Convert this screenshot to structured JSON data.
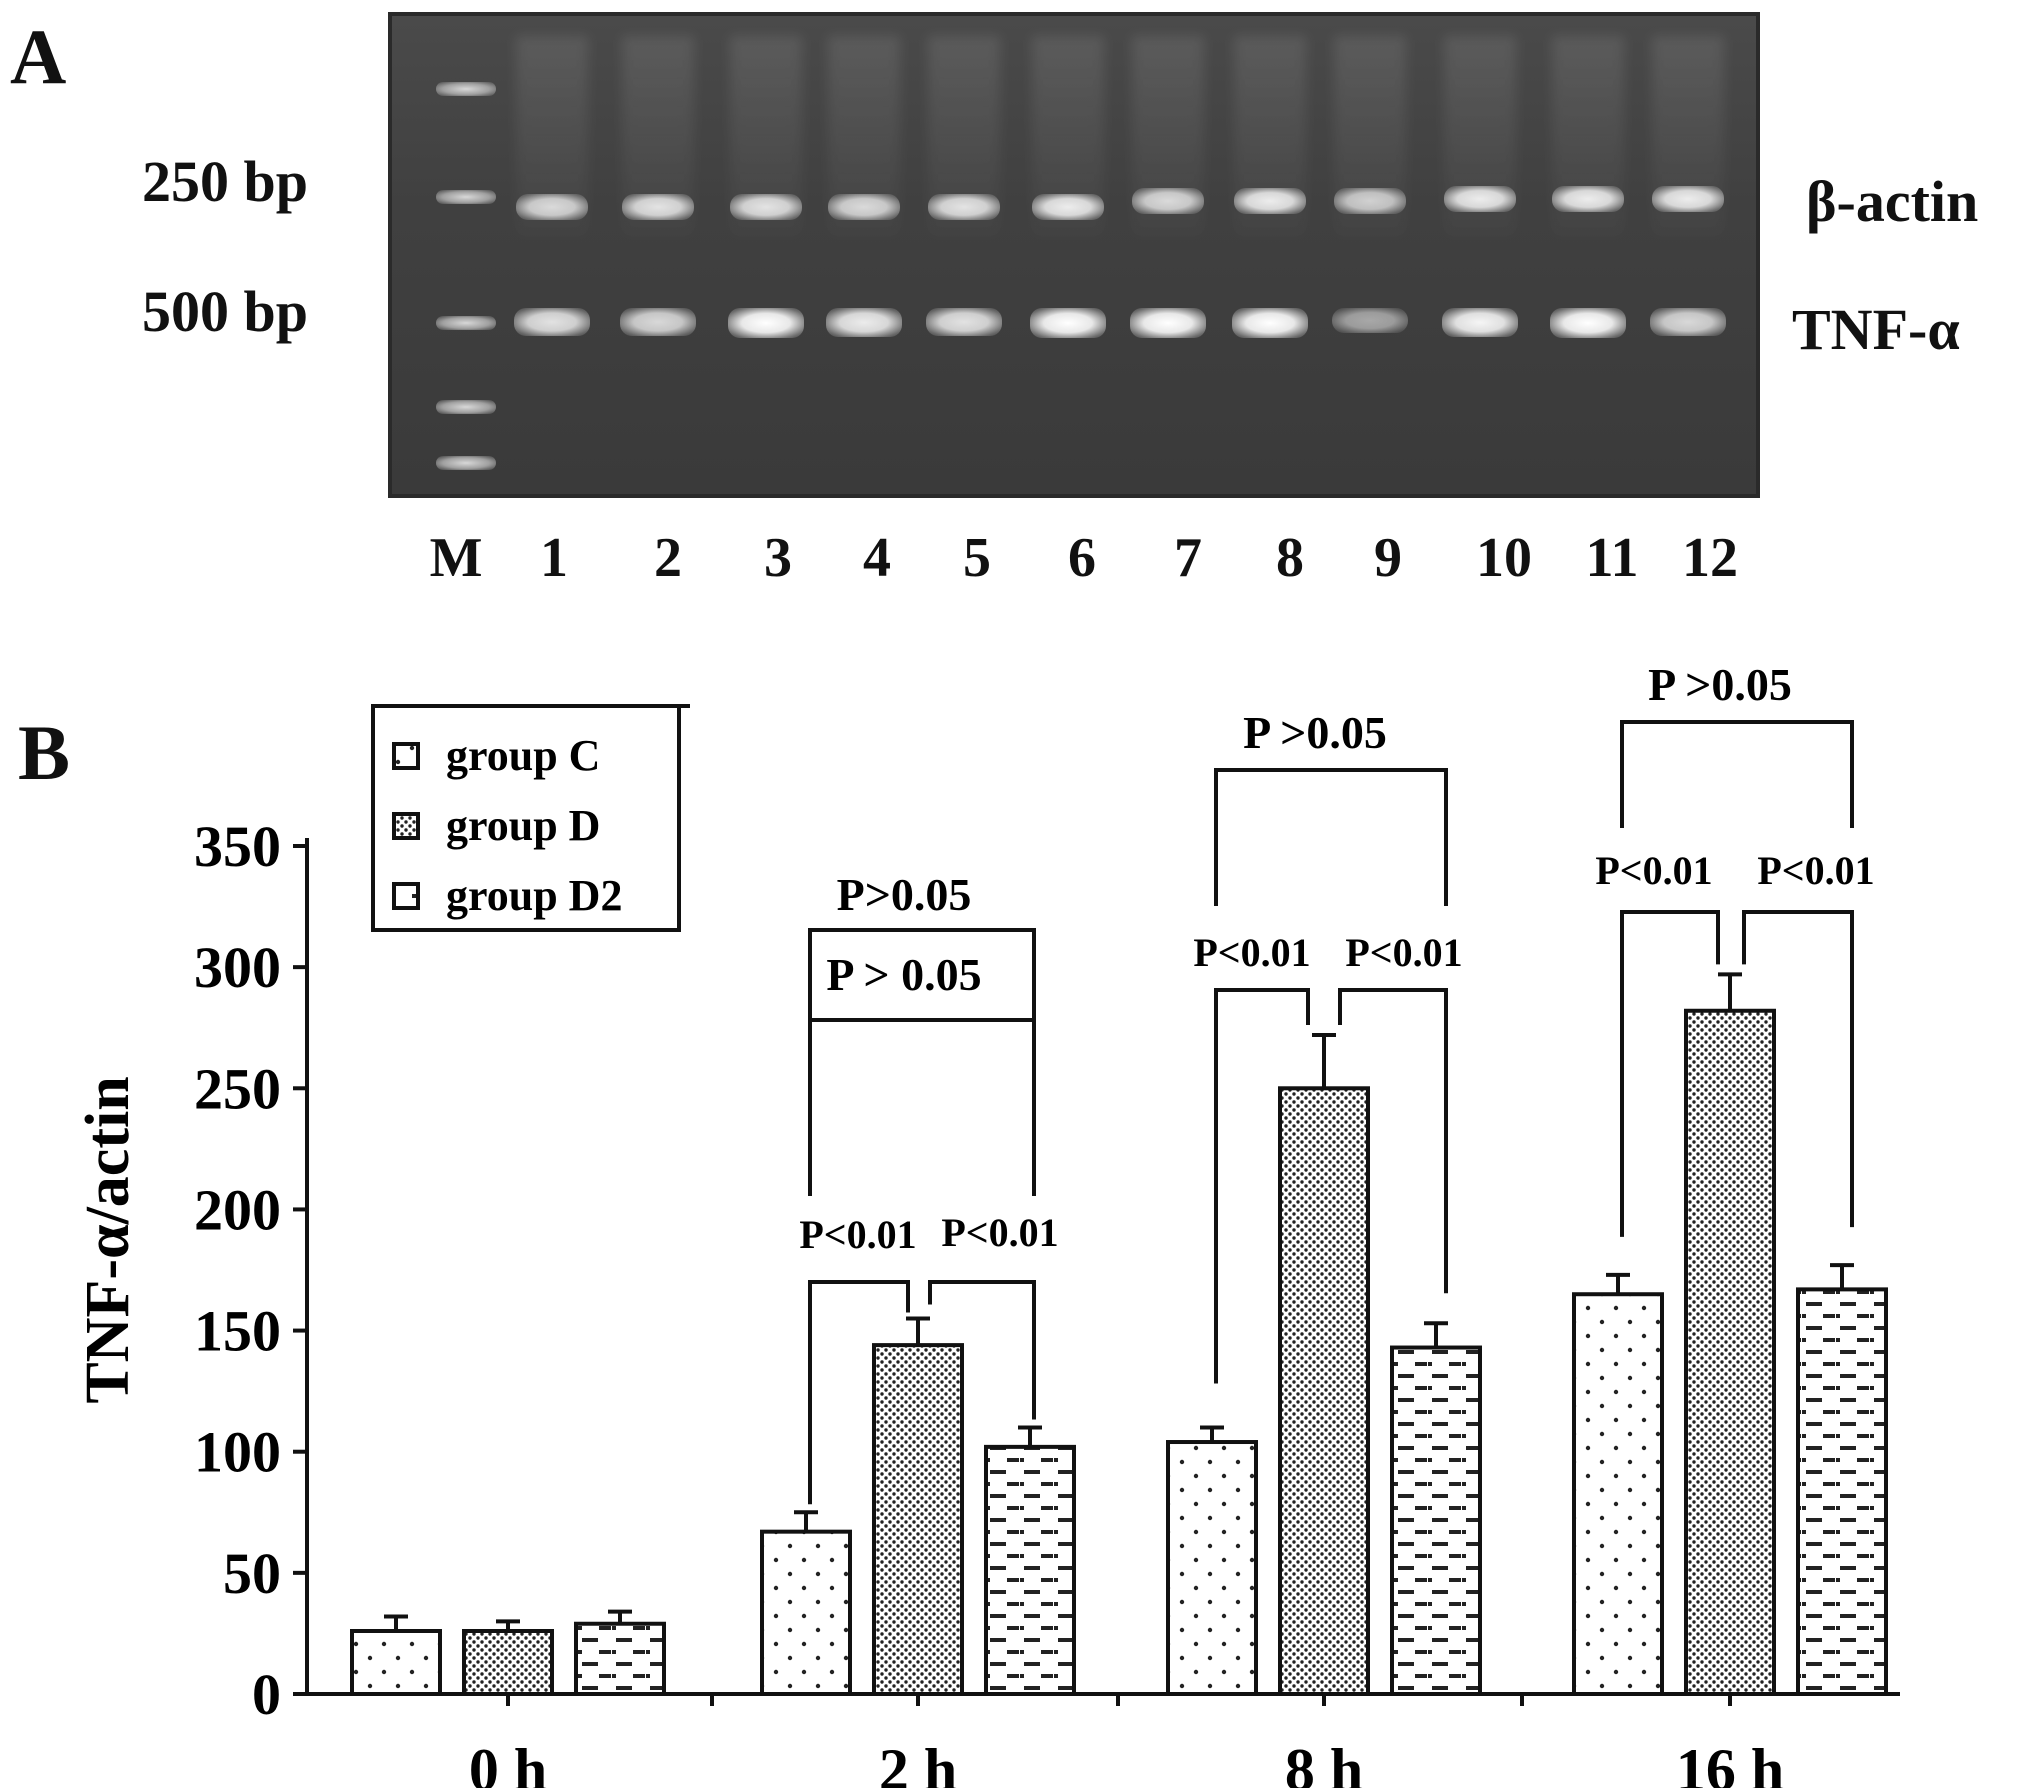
{
  "panel_a": {
    "letter": "A",
    "marker_labels": [
      "250 bp",
      "500 bp"
    ],
    "band_labels": [
      "β-actin",
      "TNF-α"
    ],
    "lanes": [
      "M",
      "1",
      "2",
      "3",
      "4",
      "5",
      "6",
      "7",
      "8",
      "9",
      "10",
      "11",
      "12"
    ],
    "beta_actin_intensity": [
      0.8,
      0.85,
      0.85,
      0.8,
      0.85,
      0.9,
      0.8,
      0.9,
      0.75,
      0.9,
      0.9,
      0.9
    ],
    "tnf_intensity": [
      0.85,
      0.8,
      1.0,
      0.9,
      0.85,
      1.0,
      1.0,
      1.0,
      0.55,
      0.95,
      1.0,
      0.8
    ]
  },
  "panel_b": {
    "letter": "B"
  },
  "chart_data": {
    "type": "bar",
    "categories": [
      "0 h",
      "2 h",
      "8 h",
      "16 h"
    ],
    "series": [
      {
        "name": "group C",
        "values": [
          26,
          67,
          104,
          165
        ],
        "errors": [
          6,
          8,
          6,
          8
        ]
      },
      {
        "name": "group D",
        "values": [
          26,
          144,
          250,
          282
        ],
        "errors": [
          4,
          11,
          22,
          15
        ]
      },
      {
        "name": "group D2",
        "values": [
          29,
          102,
          143,
          167
        ],
        "errors": [
          5,
          8,
          10,
          10
        ]
      }
    ],
    "ylabel": "TNF-α/actin",
    "ylim": [
      0,
      350
    ],
    "yticks": [
      0,
      50,
      100,
      150,
      200,
      250,
      300,
      350
    ],
    "legend_position": "top-left",
    "annotations": [
      {
        "category": "2 h",
        "pair": "C-D",
        "text": "P<0.01"
      },
      {
        "category": "2 h",
        "pair": "D-D2",
        "text": "P<0.01"
      },
      {
        "category": "2 h",
        "pair": "C-D2",
        "text": "P > 0.05"
      },
      {
        "category": "2 h",
        "pair": "C-D2 outer",
        "text": "P>0.05"
      },
      {
        "category": "8 h",
        "pair": "C-D",
        "text": "P<0.01"
      },
      {
        "category": "8 h",
        "pair": "D-D2",
        "text": "P<0.01"
      },
      {
        "category": "8 h",
        "pair": "C-D2",
        "text": "P >0.05"
      },
      {
        "category": "16 h",
        "pair": "C-D",
        "text": "P<0.01"
      },
      {
        "category": "16 h",
        "pair": "D-D2",
        "text": "P<0.01"
      },
      {
        "category": "16 h",
        "pair": "C-D2",
        "text": "P >0.05"
      }
    ]
  }
}
